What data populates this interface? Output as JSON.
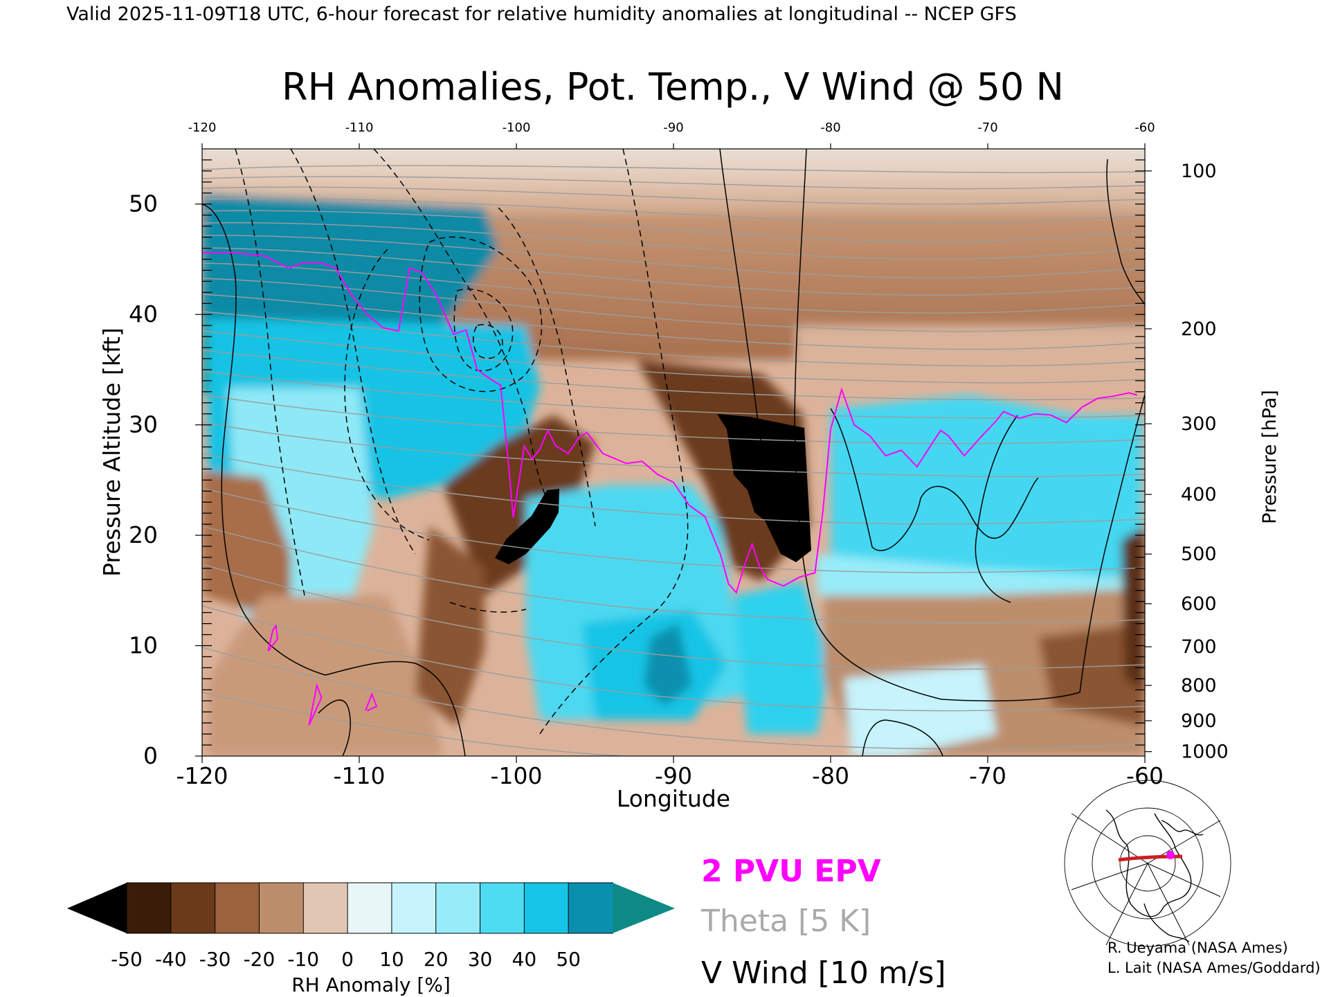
{
  "header": {
    "valid_line": "Valid 2025-11-09T18 UTC, 6-hour forecast for relative humidity anomalies at longitudinal -- NCEP GFS"
  },
  "chart_data": {
    "type": "heatmap",
    "title": "RH Anomalies, Pot. Temp., V Wind @ 50 N",
    "xlabel": "Longitude",
    "ylabel": "Pressure Altitude [kft]",
    "y2label": "Pressure [hPa]",
    "xlim": [
      -120,
      -60
    ],
    "ylim": [
      0,
      55
    ],
    "x_ticks": [
      "-120",
      "-110",
      "-100",
      "-90",
      "-80",
      "-70",
      "-60"
    ],
    "x_tick_values": [
      -120,
      -110,
      -100,
      -90,
      -80,
      -70,
      -60
    ],
    "y_ticks": [
      "0",
      "10",
      "20",
      "30",
      "40",
      "50"
    ],
    "y_tick_values": [
      0,
      10,
      20,
      30,
      40,
      50
    ],
    "pressure_ticks": [
      {
        "label": "100",
        "kft": 53.0
      },
      {
        "label": "200",
        "kft": 38.7
      },
      {
        "label": "300",
        "kft": 30.1
      },
      {
        "label": "400",
        "kft": 23.7
      },
      {
        "label": "500",
        "kft": 18.3
      },
      {
        "label": "600",
        "kft": 13.8
      },
      {
        "label": "700",
        "kft": 9.9
      },
      {
        "label": "800",
        "kft": 6.4
      },
      {
        "label": "900",
        "kft": 3.2
      },
      {
        "label": "1000",
        "kft": 0.4
      }
    ],
    "colorbar": {
      "label": "RH Anomaly [%]",
      "tick_labels": [
        "-50",
        "-40",
        "-30",
        "-20",
        "-10",
        "0",
        "10",
        "20",
        "30",
        "40",
        "50"
      ],
      "colors": [
        "#000000",
        "#3a1c08",
        "#6b3a1a",
        "#9a623d",
        "#bd8e6c",
        "#e2c6b4",
        "#e9f6f8",
        "#c6f3fc",
        "#98ecf9",
        "#4edcf3",
        "#15c4e6",
        "#0a8fae",
        "#0e8a86"
      ]
    },
    "legend": [
      {
        "label": "2 PVU EPV",
        "color": "#ff00ff"
      },
      {
        "label": "Theta [5 K]",
        "color": "#aaaaaa"
      },
      {
        "label": "V Wind [10 m/s]",
        "color": "#000000"
      }
    ],
    "epv_2pvu_line": {
      "lon": [
        -120,
        -118,
        -116,
        -114.5,
        -113.5,
        -112.5,
        -111.5,
        -110.5,
        -109.5,
        -108.5,
        -107.5,
        -106.8,
        -106,
        -105,
        -104,
        -103.2,
        -102.5,
        -101.5,
        -101,
        -100.5,
        -100.2,
        -99.8,
        -99.5,
        -99,
        -98.5,
        -98,
        -97.5,
        -96.7,
        -96,
        -95.5,
        -94.5,
        -93,
        -92,
        -91,
        -90,
        -89,
        -88,
        -87,
        -86.5,
        -86,
        -85.5,
        -85,
        -84.5,
        -84,
        -83,
        -82,
        -81,
        -80.5,
        -80,
        -79.3,
        -78.5,
        -77.5,
        -76.5,
        -75.5,
        -74.5,
        -73.5,
        -73,
        -72.5,
        -71.5,
        -70.5,
        -69.5,
        -69,
        -68,
        -67,
        -66,
        -65,
        -64,
        -63,
        -62,
        -61,
        -60.5
      ],
      "kft": [
        45.6,
        45.6,
        45.3,
        44.2,
        44.7,
        44.7,
        44.2,
        41.8,
        40.0,
        38.8,
        38.5,
        44.2,
        43.8,
        41.5,
        38.2,
        38.6,
        35.0,
        34.0,
        33.6,
        26.4,
        21.6,
        25.2,
        28.1,
        26.9,
        27.8,
        29.5,
        28.1,
        27.4,
        28.9,
        29.3,
        27.4,
        26.5,
        26.7,
        25.5,
        24.8,
        22.7,
        21.7,
        18.2,
        15.6,
        14.8,
        17.2,
        19.2,
        17.1,
        16.0,
        15.4,
        16.2,
        16.6,
        22.1,
        29.6,
        33.2,
        30.0,
        29.0,
        27.2,
        27.7,
        26.2,
        28.4,
        29.5,
        29.0,
        27.2,
        28.8,
        30.3,
        31.2,
        30.6,
        31.0,
        30.9,
        30.2,
        31.6,
        32.4,
        32.6,
        32.9,
        32.7
      ]
    },
    "epv_small_contours": [
      {
        "lon": [
          -115.8,
          -115.5,
          -115.3,
          -115.2,
          -115.8
        ],
        "kft": [
          9.5,
          11.4,
          11.8,
          10.6,
          9.5
        ]
      },
      {
        "lon": [
          -113.2,
          -112.4,
          -112.7,
          -113.2
        ],
        "kft": [
          2.8,
          5.3,
          6.4,
          2.8
        ]
      },
      {
        "lon": [
          -109.5,
          -108.9,
          -109.2,
          -109.6
        ],
        "kft": [
          4.1,
          4.5,
          5.6,
          4.1
        ]
      }
    ]
  },
  "credits": {
    "line1": "R. Ueyama (NASA Ames)",
    "line2": "L. Lait (NASA Ames/Goddard)"
  },
  "inset_map": {
    "cross_section_color": "#cc1f1f",
    "marker_color": "#ff00ff"
  }
}
